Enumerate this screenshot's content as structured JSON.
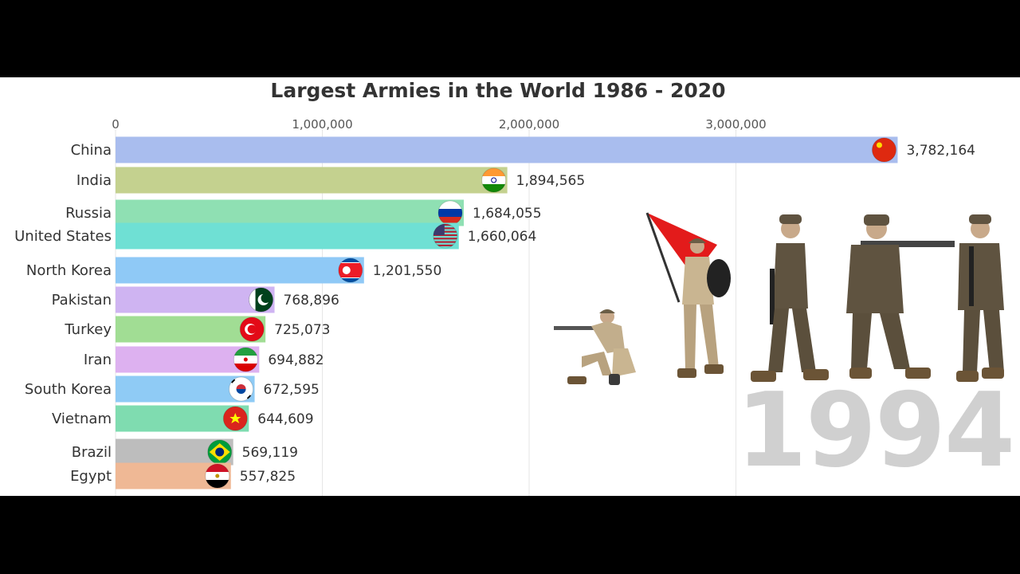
{
  "chart_data": {
    "type": "bar",
    "title": "Largest Armies in the World 1986 - 2020",
    "xlabel": "",
    "ylabel": "",
    "xlim": [
      0,
      3800000
    ],
    "x_ticks": [
      0,
      1000000,
      2000000,
      3000000
    ],
    "x_tick_labels": [
      "0",
      "1,000,000",
      "2,000,000",
      "3,000,000"
    ],
    "axis_position": "top",
    "grid": true,
    "year": "1994",
    "categories": [
      "China",
      "India",
      "Russia",
      "United States",
      "North Korea",
      "Pakistan",
      "Turkey",
      "Iran",
      "South Korea",
      "Vietnam",
      "Brazil",
      "Egypt"
    ],
    "values": [
      3782164,
      1894565,
      1684055,
      1660064,
      1201550,
      768896,
      725073,
      694882,
      672595,
      644609,
      569119,
      557825
    ],
    "value_labels": [
      "3,782,164",
      "1,894,565",
      "1,684,055",
      "1,660,064",
      "1,201,550",
      "768,896",
      "725,073",
      "694,882",
      "672,595",
      "644,609",
      "569,119",
      "557,825"
    ],
    "colors": [
      "#a9bdee",
      "#c4d18f",
      "#8fe0b3",
      "#6fe0d4",
      "#8fc9f6",
      "#cfb4f2",
      "#a1dd94",
      "#ddb1f0",
      "#8fcbf5",
      "#7fdcb0",
      "#bdbdbd",
      "#efb895"
    ],
    "flags": [
      "china-flag",
      "india-flag",
      "russia-flag",
      "usa-flag",
      "north-korea-flag",
      "pakistan-flag",
      "turkey-flag",
      "iran-flag",
      "south-korea-flag",
      "vietnam-flag",
      "brazil-flag",
      "egypt-flag"
    ]
  }
}
